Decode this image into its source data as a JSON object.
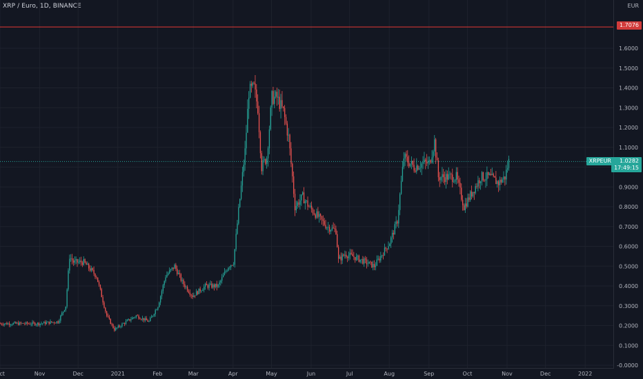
{
  "header": {
    "title": "XRP / Euro, 1D, BINANCE"
  },
  "axis": {
    "currency": "EUR"
  },
  "reference_line": {
    "value": 1.7076,
    "label": "1.7076",
    "color": "#e53935"
  },
  "last_price": {
    "symbol": "XRPEUR",
    "value": 1.0282,
    "label": "1.0282",
    "countdown": "17:49:15",
    "color": "#26a69a"
  },
  "colors": {
    "up": "#26a69a",
    "down": "#ef5350",
    "background": "#131722",
    "grid": "#1e222d"
  },
  "chart_data": {
    "type": "line",
    "title": "XRP / Euro, 1D, BINANCE",
    "ylim": [
      0.0,
      1.8
    ],
    "y_ticks": [
      "-0.0000",
      "0.1000",
      "0.2000",
      "0.3000",
      "0.4000",
      "0.5000",
      "0.6000",
      "0.7000",
      "0.8000",
      "0.9000",
      "1.0000",
      "1.1000",
      "1.2000",
      "1.3000",
      "1.4000",
      "1.5000",
      "1.6000"
    ],
    "x_ticks": [
      "Oct",
      "Nov",
      "Dec",
      "2021",
      "Feb",
      "Mar",
      "Apr",
      "May",
      "Jun",
      "Jul",
      "Aug",
      "Sep",
      "Oct",
      "Nov",
      "Dec",
      "2022"
    ],
    "grid": true,
    "series": [
      {
        "x": [
          "2020-10-01",
          "2020-10-15",
          "2020-10-31",
          "2020-11-15",
          "2020-11-21",
          "2020-11-24",
          "2020-11-27",
          "2020-12-05",
          "2020-12-15",
          "2020-12-23",
          "2020-12-29",
          "2021-01-05",
          "2021-01-15",
          "2021-01-25",
          "2021-02-01",
          "2021-02-07",
          "2021-02-14",
          "2021-02-20",
          "2021-02-28",
          "2021-03-10",
          "2021-03-20",
          "2021-03-28",
          "2021-04-01",
          "2021-04-05",
          "2021-04-10",
          "2021-04-13",
          "2021-04-17",
          "2021-04-20",
          "2021-04-23",
          "2021-04-27",
          "2021-05-01",
          "2021-05-05",
          "2021-05-10",
          "2021-05-14",
          "2021-05-17",
          "2021-05-19",
          "2021-05-25",
          "2021-05-30",
          "2021-06-06",
          "2021-06-13",
          "2021-06-20",
          "2021-06-22",
          "2021-06-27",
          "2021-07-03",
          "2021-07-10",
          "2021-07-20",
          "2021-07-26",
          "2021-08-01",
          "2021-08-07",
          "2021-08-12",
          "2021-08-20",
          "2021-08-27",
          "2021-09-01",
          "2021-09-05",
          "2021-09-08",
          "2021-09-15",
          "2021-09-22",
          "2021-09-28",
          "2021-10-05",
          "2021-10-11",
          "2021-10-18",
          "2021-10-25",
          "2021-10-30",
          "2021-11-02"
        ],
        "y": [
          0.21,
          0.21,
          0.21,
          0.22,
          0.3,
          0.55,
          0.52,
          0.52,
          0.45,
          0.25,
          0.18,
          0.21,
          0.25,
          0.22,
          0.3,
          0.45,
          0.5,
          0.42,
          0.35,
          0.4,
          0.4,
          0.5,
          0.52,
          0.78,
          1.08,
          1.38,
          1.4,
          1.3,
          1.0,
          1.05,
          1.35,
          1.35,
          1.28,
          1.15,
          0.95,
          0.8,
          0.85,
          0.8,
          0.75,
          0.7,
          0.68,
          0.53,
          0.56,
          0.55,
          0.53,
          0.5,
          0.56,
          0.62,
          0.73,
          1.05,
          1.0,
          1.02,
          1.02,
          1.13,
          0.95,
          0.95,
          0.95,
          0.8,
          0.88,
          0.95,
          0.95,
          0.92,
          0.95,
          1.03
        ]
      }
    ]
  }
}
